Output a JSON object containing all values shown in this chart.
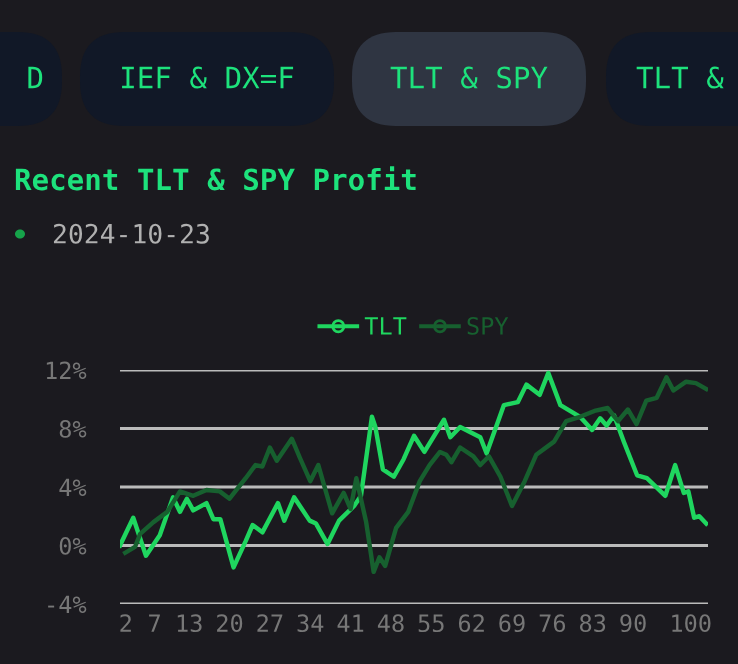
{
  "chart_data": {
    "type": "line",
    "title": "Recent TLT & SPY Profit",
    "subtitle": "2024-10-23",
    "annotations": [
      "D",
      "IEF & DX=F",
      "TLT & SPY",
      "TLT &"
    ],
    "xlim": [
      1,
      103
    ],
    "xticks": [
      2,
      7,
      13,
      20,
      27,
      34,
      41,
      48,
      55,
      62,
      69,
      76,
      83,
      90,
      100
    ],
    "ylim": [
      -4,
      12
    ],
    "yticks": [
      {
        "value": -4,
        "label": "-4%"
      },
      {
        "value": 0,
        "label": "0%"
      },
      {
        "value": 4,
        "label": "4%"
      },
      {
        "value": 8,
        "label": "8%"
      },
      {
        "value": 12,
        "label": "12%"
      }
    ],
    "grid": "y",
    "legend": "top",
    "series": [
      {
        "name": "TLT",
        "color": "#1fd65f",
        "x": [
          1,
          3.3,
          5.5,
          7.9,
          10.2,
          11.4,
          12.6,
          13.7,
          16,
          17.2,
          18.4,
          20.7,
          22.8,
          24,
          25.7,
          28.4,
          29.5,
          31.2,
          33.9,
          35,
          37,
          39,
          41.6,
          42.8,
          44.7,
          45.3,
          46.6,
          48.5,
          50.2,
          52,
          53.8,
          57.2,
          58.3,
          60,
          63.5,
          64.6,
          67.6,
          70,
          71.5,
          73.8,
          75.3,
          77.4,
          80.8,
          82.9,
          84.3,
          85.4,
          86.7,
          88.4,
          90.7,
          92.4,
          95.6,
          97.3,
          98.8,
          99.6,
          100.6,
          101.5,
          102.7
        ],
        "values": [
          0,
          1.9,
          -0.7,
          0.7,
          3.3,
          2.3,
          3.2,
          2.4,
          2.9,
          1.8,
          1.8,
          -1.5,
          0.3,
          1.4,
          0.9,
          2.9,
          1.7,
          3.3,
          1.7,
          1.5,
          0.1,
          1.7,
          2.7,
          3.4,
          8.8,
          8.1,
          5.2,
          4.7,
          5.9,
          7.5,
          6.4,
          8.6,
          7.4,
          8.1,
          7.4,
          6.3,
          9.6,
          9.8,
          11,
          10.3,
          11.8,
          9.6,
          8.8,
          7.9,
          8.7,
          8.2,
          8.9,
          7.1,
          4.8,
          4.6,
          3.4,
          5.5,
          3.6,
          3.7,
          1.9,
          2,
          1.5
        ]
      },
      {
        "name": "SPY",
        "color": "#17602f",
        "x": [
          1.9,
          3.6,
          4.5,
          6.8,
          9.2,
          11.4,
          13.7,
          16,
          18.3,
          20,
          22.8,
          24.5,
          25.7,
          27,
          28.2,
          30.8,
          32.2,
          34,
          35.4,
          37.8,
          39.8,
          41,
          42,
          43.7,
          45,
          46,
          47,
          48.9,
          51,
          53,
          54.7,
          56.5,
          57.6,
          58.5,
          60,
          62.3,
          63.5,
          65,
          67,
          69,
          71.2,
          73.2,
          76.3,
          78.4,
          80.8,
          83.3,
          85.6,
          87.4,
          89.1,
          90.6,
          92.3,
          94.1,
          95.8,
          97,
          99.2,
          100.9,
          102.7
        ],
        "values": [
          -0.5,
          -0.1,
          0.8,
          1.6,
          2.3,
          3.7,
          3.4,
          3.8,
          3.7,
          3.2,
          4.6,
          5.5,
          5.4,
          6.7,
          5.8,
          7.3,
          6,
          4.4,
          5.5,
          2.2,
          3.6,
          2.5,
          4.6,
          1.6,
          -1.8,
          -0.8,
          -1.4,
          1.2,
          2.3,
          4.4,
          5.5,
          6.4,
          6.2,
          5.7,
          6.7,
          6.1,
          5.5,
          6.1,
          4.7,
          2.7,
          4.4,
          6.2,
          7.1,
          8.5,
          8.8,
          9.2,
          9.4,
          8.5,
          9.3,
          8.3,
          9.9,
          10.1,
          11.5,
          10.6,
          11.2,
          11.1,
          10.7
        ]
      }
    ]
  }
}
